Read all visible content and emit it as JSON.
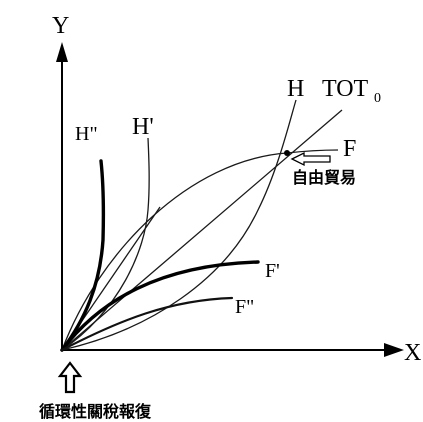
{
  "axes": {
    "y_label": "Y",
    "x_label": "X"
  },
  "curves": {
    "H": "H",
    "H_prime": "H'",
    "H_double_prime": "H\"",
    "F": "F",
    "F_prime": "F'",
    "F_double_prime": "F\"",
    "tot_base": "TOT",
    "tot_subscript": "0"
  },
  "annotations": {
    "free_trade": "自由貿易",
    "retaliation": "循環性關稅報復"
  }
}
